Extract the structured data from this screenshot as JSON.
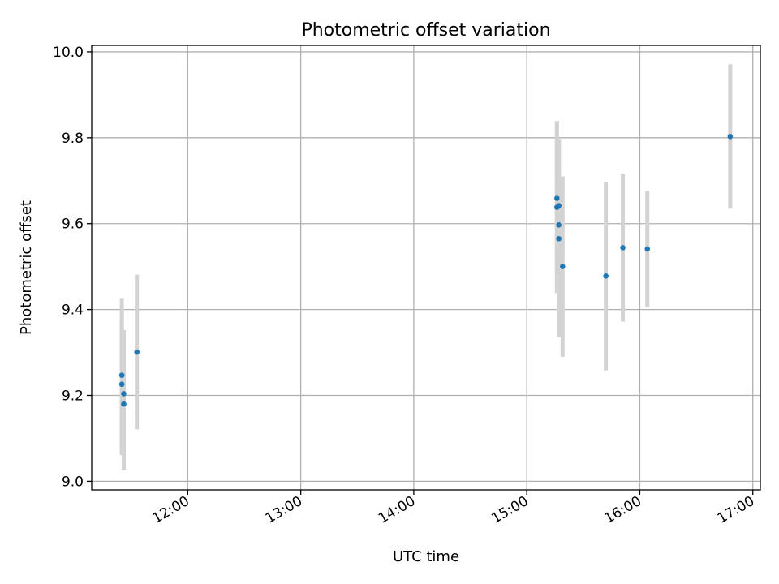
{
  "chart_data": {
    "type": "scatter",
    "title": "Photometric offset variation",
    "xlabel": "UTC time",
    "ylabel": "Photometric offset",
    "x_tick_labels": [
      "12:00",
      "13:00",
      "14:00",
      "15:00",
      "16:00",
      "17:00"
    ],
    "y_tick_labels": [
      "9.0",
      "9.2",
      "9.4",
      "9.6",
      "9.8",
      "10.0"
    ],
    "xlim": [
      "11:09",
      "17:04"
    ],
    "ylim": [
      8.98,
      10.015
    ],
    "grid": true,
    "marker_color": "#1f77b4",
    "errorbar_color": "#d3d3d3",
    "points": [
      {
        "t": "11:25",
        "y": 9.247,
        "err": 0.178
      },
      {
        "t": "11:25",
        "y": 9.226,
        "err": 0.165
      },
      {
        "t": "11:26",
        "y": 9.204,
        "err": 0.148
      },
      {
        "t": "11:26",
        "y": 9.18,
        "err": 0.155
      },
      {
        "t": "11:33",
        "y": 9.301,
        "err": 0.18
      },
      {
        "t": "15:16",
        "y": 9.659,
        "err": 0.18
      },
      {
        "t": "15:16",
        "y": 9.638,
        "err": 0.2
      },
      {
        "t": "15:17",
        "y": 9.642,
        "err": 0.155
      },
      {
        "t": "15:17",
        "y": 9.597,
        "err": 0.2
      },
      {
        "t": "15:17",
        "y": 9.565,
        "err": 0.23
      },
      {
        "t": "15:19",
        "y": 9.5,
        "err": 0.21
      },
      {
        "t": "15:42",
        "y": 9.478,
        "err": 0.22
      },
      {
        "t": "15:51",
        "y": 9.544,
        "err": 0.172
      },
      {
        "t": "16:04",
        "y": 9.541,
        "err": 0.135
      },
      {
        "t": "16:48",
        "y": 9.803,
        "err": 0.168
      }
    ]
  }
}
